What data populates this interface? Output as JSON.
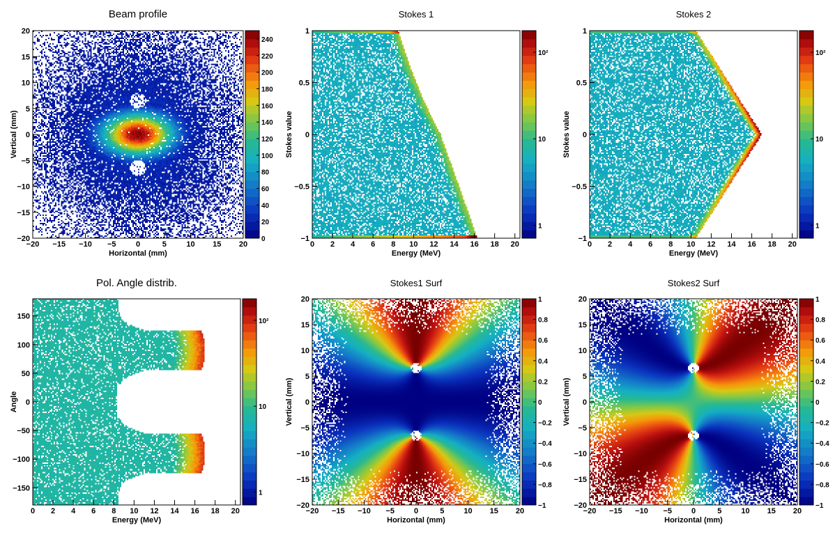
{
  "figure_title": "",
  "chart_data": [
    {
      "type": "heatmap",
      "title": "Beam profile",
      "xlabel": "Horizontal (mm)",
      "ylabel": "Vertical (mm)",
      "xlim": [
        -20,
        20
      ],
      "ylim": [
        -20,
        20
      ],
      "xticks": [
        -20,
        -15,
        -10,
        -5,
        0,
        5,
        10,
        15,
        20
      ],
      "yticks": [
        -20,
        -15,
        -10,
        -5,
        0,
        5,
        10,
        15,
        20
      ],
      "xtick_labels": [
        "−20",
        "−15",
        "−10",
        "−5",
        "0",
        "5",
        "10",
        "15",
        "20"
      ],
      "ytick_labels": [
        "−20",
        "−15",
        "−10",
        "−5",
        "0",
        "5",
        "10",
        "15",
        "20"
      ],
      "colorbar": {
        "scale": "linear",
        "range": [
          0,
          250
        ],
        "ticks": [
          0,
          20,
          40,
          60,
          80,
          100,
          120,
          140,
          160,
          180,
          200,
          220,
          240
        ],
        "tick_labels": [
          "0",
          "20",
          "40",
          "60",
          "80",
          "100",
          "120",
          "140",
          "160",
          "180",
          "200",
          "220",
          "240"
        ]
      },
      "pattern": "beam",
      "peak_counts": 245,
      "core_center_mm": [
        0,
        0
      ],
      "holes_mm": [
        [
          0,
          6.5
        ],
        [
          0,
          -6.5
        ]
      ],
      "colors": {
        "cmap": "rainbow",
        "axis": "#000000"
      }
    },
    {
      "type": "heatmap",
      "title": "Stokes 1",
      "xlabel": "Energy (MeV)",
      "ylabel": "Stokes value",
      "xlim": [
        0,
        20.5
      ],
      "ylim": [
        -1,
        1
      ],
      "xticks": [
        0,
        2,
        4,
        6,
        8,
        10,
        12,
        14,
        16,
        18,
        20
      ],
      "yticks": [
        -1,
        -0.5,
        0,
        0.5,
        1
      ],
      "xtick_labels": [
        "0",
        "2",
        "4",
        "6",
        "8",
        "10",
        "12",
        "14",
        "16",
        "18",
        "20"
      ],
      "ytick_labels": [
        "−1",
        "−0.5",
        "0",
        "0.5",
        "1"
      ],
      "colorbar": {
        "scale": "log",
        "ticks": [
          1,
          10,
          100
        ],
        "tick_labels": [
          "1",
          "10",
          "10²"
        ]
      },
      "pattern": "stokes1",
      "edge_points": [
        [
          8.5,
          1.0
        ],
        [
          10.0,
          -0.1
        ],
        [
          12.0,
          -0.6
        ],
        [
          14.0,
          -0.9
        ],
        [
          16.3,
          -1.0
        ]
      ],
      "max_energy_mev": 16.3,
      "colors": {
        "cmap": "rainbow"
      }
    },
    {
      "type": "heatmap",
      "title": "Stokes 2",
      "xlabel": "Energy (MeV)",
      "ylabel": "Stokes value",
      "xlim": [
        0,
        20.5
      ],
      "ylim": [
        -1,
        1
      ],
      "xticks": [
        0,
        2,
        4,
        6,
        8,
        10,
        12,
        14,
        16,
        18,
        20
      ],
      "yticks": [
        -1,
        -0.5,
        0,
        0.5,
        1
      ],
      "xtick_labels": [
        "0",
        "2",
        "4",
        "6",
        "8",
        "10",
        "12",
        "14",
        "16",
        "18",
        "20"
      ],
      "ytick_labels": [
        "−1",
        "−0.5",
        "0",
        "0.5",
        "1"
      ],
      "colorbar": {
        "scale": "log",
        "ticks": [
          1,
          10,
          100
        ],
        "tick_labels": [
          "1",
          "10",
          "10²"
        ]
      },
      "pattern": "stokes2",
      "edge_points": [
        [
          10.5,
          1.0
        ],
        [
          17.0,
          0.0
        ],
        [
          10.5,
          -1.0
        ]
      ],
      "max_energy_mev": 17.0,
      "colors": {
        "cmap": "rainbow"
      }
    },
    {
      "type": "heatmap",
      "title": "Pol. Angle distrib.",
      "xlabel": "Energy (MeV)",
      "ylabel": "Angle",
      "xlim": [
        0,
        20.5
      ],
      "ylim": [
        -180,
        180
      ],
      "xticks": [
        0,
        2,
        4,
        6,
        8,
        10,
        12,
        14,
        16,
        18,
        20
      ],
      "yticks": [
        -150,
        -100,
        -50,
        0,
        50,
        100,
        150
      ],
      "xtick_labels": [
        "0",
        "2",
        "4",
        "6",
        "8",
        "10",
        "12",
        "14",
        "16",
        "18",
        "20"
      ],
      "ytick_labels": [
        "−150",
        "−100",
        "−50",
        "0",
        "50",
        "100",
        "150"
      ],
      "colorbar": {
        "scale": "log",
        "ticks": [
          1,
          10,
          100
        ],
        "tick_labels": [
          "1",
          "10",
          "10²"
        ]
      },
      "pattern": "angle",
      "cusp_points_deg": [
        [
          17.0,
          90
        ],
        [
          17.0,
          -90
        ]
      ],
      "inner_gap_energy_mev": 8.5,
      "colors": {
        "cmap": "rainbow"
      }
    },
    {
      "type": "heatmap",
      "title": "Stokes1 Surf",
      "xlabel": "Horizontal (mm)",
      "ylabel": "Vertical (mm)",
      "xlim": [
        -20,
        20
      ],
      "ylim": [
        -20,
        20
      ],
      "xticks": [
        -20,
        -15,
        -10,
        -5,
        0,
        5,
        10,
        15,
        20
      ],
      "yticks": [
        -20,
        -15,
        -10,
        -5,
        0,
        5,
        10,
        15,
        20
      ],
      "xtick_labels": [
        "−20",
        "−15",
        "−10",
        "−5",
        "0",
        "5",
        "10",
        "15",
        "20"
      ],
      "ytick_labels": [
        "−20",
        "−15",
        "−10",
        "−5",
        "0",
        "5",
        "10",
        "15",
        "20"
      ],
      "colorbar": {
        "scale": "linear",
        "range": [
          -1,
          1
        ],
        "ticks": [
          -1,
          -0.8,
          -0.6,
          -0.4,
          -0.2,
          0,
          0.2,
          0.4,
          0.6,
          0.8,
          1
        ],
        "tick_labels": [
          "−1",
          "−0.8",
          "−0.6",
          "−0.4",
          "−0.2",
          "0",
          "0.2",
          "0.4",
          "0.6",
          "0.8",
          "1"
        ]
      },
      "pattern": "surf1",
      "foci_mm": [
        [
          0,
          6.5
        ],
        [
          0,
          -6.5
        ]
      ],
      "colors": {
        "cmap": "rainbow"
      }
    },
    {
      "type": "heatmap",
      "title": "Stokes2 Surf",
      "xlabel": "Horizontal (mm)",
      "ylabel": "Vertical (mm)",
      "xlim": [
        -20,
        20
      ],
      "ylim": [
        -20,
        20
      ],
      "xticks": [
        -20,
        -15,
        -10,
        -5,
        0,
        5,
        10,
        15,
        20
      ],
      "yticks": [
        -20,
        -15,
        -10,
        -5,
        0,
        5,
        10,
        15,
        20
      ],
      "xtick_labels": [
        "−20",
        "−15",
        "−10",
        "−5",
        "0",
        "5",
        "10",
        "15",
        "20"
      ],
      "ytick_labels": [
        "−20",
        "−15",
        "−10",
        "−5",
        "0",
        "5",
        "10",
        "15",
        "20"
      ],
      "colorbar": {
        "scale": "linear",
        "range": [
          -1,
          1
        ],
        "ticks": [
          -1,
          -0.8,
          -0.6,
          -0.4,
          -0.2,
          0,
          0.2,
          0.4,
          0.6,
          0.8,
          1
        ],
        "tick_labels": [
          "−1",
          "−0.8",
          "−0.6",
          "−0.4",
          "−0.2",
          "0",
          "0.2",
          "0.4",
          "0.6",
          "0.8",
          "1"
        ]
      },
      "pattern": "surf2",
      "foci_mm": [
        [
          0,
          6.5
        ],
        [
          0,
          -6.5
        ]
      ],
      "colors": {
        "cmap": "rainbow"
      }
    }
  ]
}
